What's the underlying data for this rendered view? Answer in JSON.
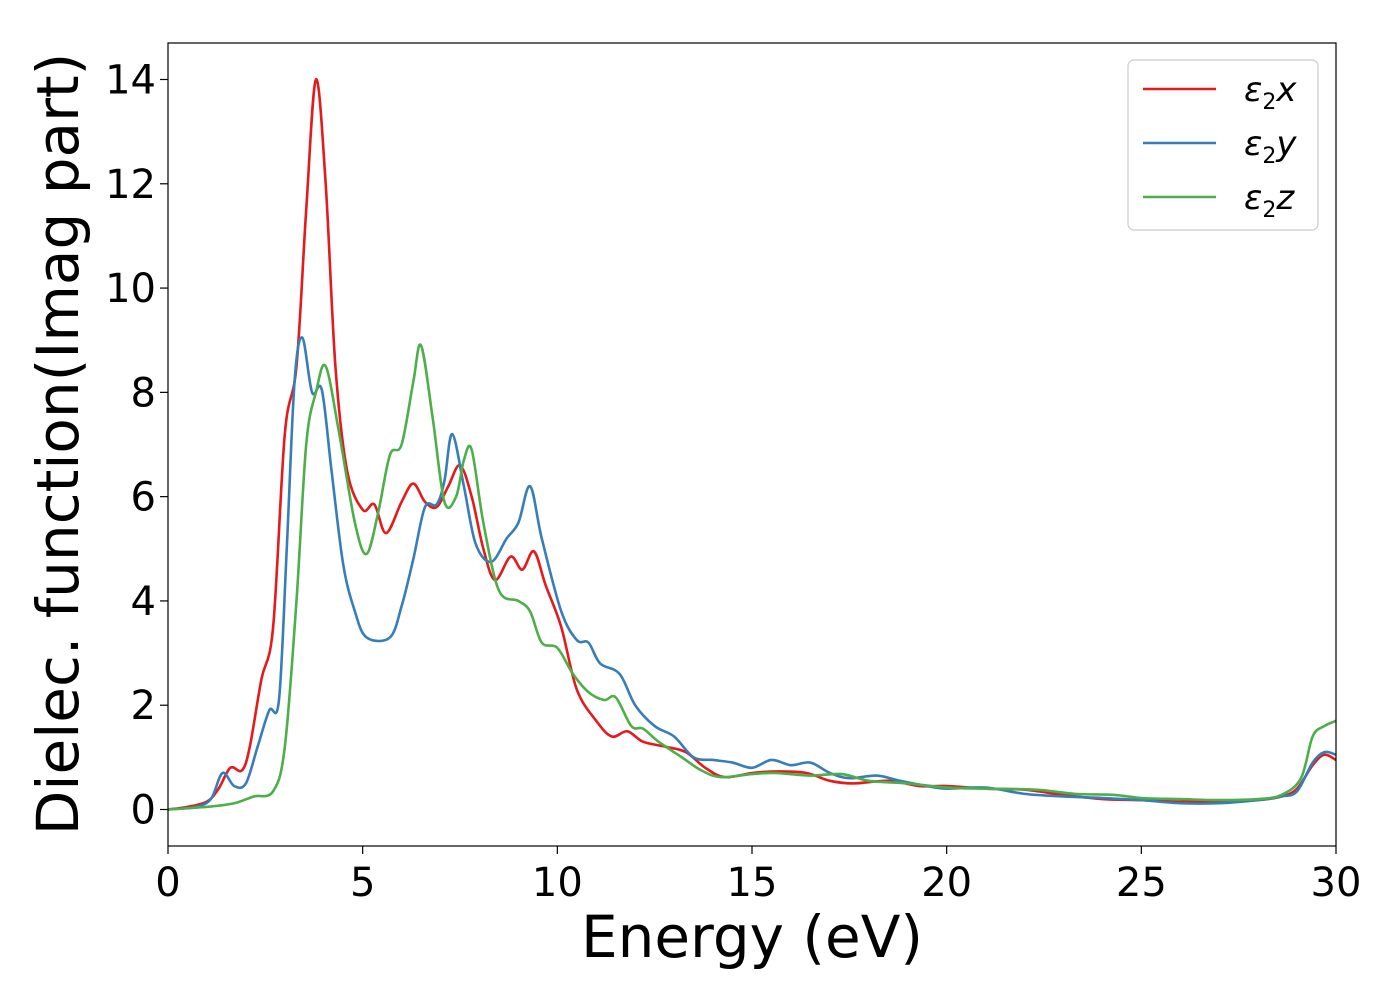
{
  "chart_data": {
    "type": "line",
    "title": "",
    "xlabel": "Energy (eV)",
    "ylabel": "Dielec. function(Imag part)",
    "xlim": [
      0,
      30
    ],
    "ylim": [
      -0.7,
      14.7
    ],
    "xticks": [
      0,
      5,
      10,
      15,
      20,
      25,
      30
    ],
    "yticks": [
      0,
      2,
      4,
      6,
      8,
      10,
      12,
      14
    ],
    "grid": false,
    "legend_position": "top-right",
    "legend": [
      {
        "base": "ε",
        "sub": "2",
        "var": "x"
      },
      {
        "base": "ε",
        "sub": "2",
        "var": "y"
      },
      {
        "base": "ε",
        "sub": "2",
        "var": "z"
      }
    ],
    "series": [
      {
        "name": "ε2x",
        "color": "#e41a1c",
        "points": [
          [
            0,
            0
          ],
          [
            0.5,
            0.05
          ],
          [
            1.0,
            0.15
          ],
          [
            1.3,
            0.4
          ],
          [
            1.6,
            0.8
          ],
          [
            1.9,
            0.75
          ],
          [
            2.1,
            1.2
          ],
          [
            2.4,
            2.5
          ],
          [
            2.7,
            3.5
          ],
          [
            3.0,
            7.2
          ],
          [
            3.3,
            8.5
          ],
          [
            3.55,
            11.5
          ],
          [
            3.8,
            14.0
          ],
          [
            4.05,
            12.0
          ],
          [
            4.3,
            8.5
          ],
          [
            4.6,
            6.5
          ],
          [
            5.0,
            5.75
          ],
          [
            5.3,
            5.85
          ],
          [
            5.6,
            5.3
          ],
          [
            6.0,
            5.9
          ],
          [
            6.3,
            6.25
          ],
          [
            6.6,
            5.9
          ],
          [
            6.9,
            5.8
          ],
          [
            7.2,
            6.2
          ],
          [
            7.5,
            6.6
          ],
          [
            7.8,
            6.0
          ],
          [
            8.1,
            5.0
          ],
          [
            8.4,
            4.4
          ],
          [
            8.8,
            4.85
          ],
          [
            9.1,
            4.6
          ],
          [
            9.4,
            4.95
          ],
          [
            9.7,
            4.3
          ],
          [
            10.1,
            3.5
          ],
          [
            10.5,
            2.3
          ],
          [
            11.0,
            1.7
          ],
          [
            11.4,
            1.4
          ],
          [
            11.8,
            1.5
          ],
          [
            12.2,
            1.3
          ],
          [
            12.8,
            1.2
          ],
          [
            13.3,
            1.1
          ],
          [
            13.8,
            0.8
          ],
          [
            14.3,
            0.62
          ],
          [
            15.0,
            0.7
          ],
          [
            15.7,
            0.73
          ],
          [
            16.4,
            0.7
          ],
          [
            17.0,
            0.55
          ],
          [
            17.6,
            0.5
          ],
          [
            18.5,
            0.55
          ],
          [
            19.3,
            0.45
          ],
          [
            20.0,
            0.45
          ],
          [
            21.0,
            0.4
          ],
          [
            22.0,
            0.38
          ],
          [
            23.0,
            0.28
          ],
          [
            24.0,
            0.2
          ],
          [
            25.0,
            0.18
          ],
          [
            26.0,
            0.15
          ],
          [
            27.0,
            0.15
          ],
          [
            28.0,
            0.18
          ],
          [
            28.6,
            0.25
          ],
          [
            29.0,
            0.4
          ],
          [
            29.4,
            0.85
          ],
          [
            29.7,
            1.05
          ],
          [
            30.0,
            0.95
          ]
        ]
      },
      {
        "name": "ε2y",
        "color": "#377eb8",
        "points": [
          [
            0,
            0
          ],
          [
            0.7,
            0.05
          ],
          [
            1.1,
            0.2
          ],
          [
            1.4,
            0.7
          ],
          [
            1.7,
            0.45
          ],
          [
            2.0,
            0.5
          ],
          [
            2.3,
            1.2
          ],
          [
            2.6,
            1.9
          ],
          [
            2.85,
            2.1
          ],
          [
            3.05,
            5.0
          ],
          [
            3.25,
            8.2
          ],
          [
            3.45,
            9.05
          ],
          [
            3.7,
            8.0
          ],
          [
            3.95,
            8.05
          ],
          [
            4.2,
            6.5
          ],
          [
            4.5,
            4.7
          ],
          [
            4.8,
            3.8
          ],
          [
            5.1,
            3.3
          ],
          [
            5.7,
            3.3
          ],
          [
            6.0,
            3.9
          ],
          [
            6.3,
            4.8
          ],
          [
            6.6,
            5.8
          ],
          [
            6.9,
            5.85
          ],
          [
            7.1,
            6.3
          ],
          [
            7.3,
            7.2
          ],
          [
            7.6,
            6.2
          ],
          [
            7.9,
            5.1
          ],
          [
            8.3,
            4.75
          ],
          [
            8.7,
            5.2
          ],
          [
            9.0,
            5.5
          ],
          [
            9.3,
            6.2
          ],
          [
            9.6,
            5.2
          ],
          [
            10.1,
            3.8
          ],
          [
            10.5,
            3.25
          ],
          [
            10.8,
            3.2
          ],
          [
            11.1,
            2.8
          ],
          [
            11.6,
            2.6
          ],
          [
            12.0,
            2.0
          ],
          [
            12.5,
            1.6
          ],
          [
            13.0,
            1.4
          ],
          [
            13.5,
            1.0
          ],
          [
            14.0,
            0.95
          ],
          [
            14.5,
            0.9
          ],
          [
            15.0,
            0.8
          ],
          [
            15.5,
            0.95
          ],
          [
            16.0,
            0.85
          ],
          [
            16.5,
            0.9
          ],
          [
            17.0,
            0.7
          ],
          [
            17.5,
            0.6
          ],
          [
            18.2,
            0.65
          ],
          [
            18.8,
            0.55
          ],
          [
            19.5,
            0.45
          ],
          [
            20.0,
            0.4
          ],
          [
            21.0,
            0.42
          ],
          [
            22.0,
            0.3
          ],
          [
            23.0,
            0.25
          ],
          [
            24.0,
            0.22
          ],
          [
            25.0,
            0.18
          ],
          [
            26.0,
            0.12
          ],
          [
            27.0,
            0.12
          ],
          [
            28.0,
            0.18
          ],
          [
            28.6,
            0.25
          ],
          [
            29.0,
            0.35
          ],
          [
            29.4,
            0.9
          ],
          [
            29.7,
            1.1
          ],
          [
            30.0,
            1.05
          ]
        ]
      },
      {
        "name": "ε2z",
        "color": "#4daf4a",
        "points": [
          [
            0,
            0
          ],
          [
            1.0,
            0.05
          ],
          [
            1.7,
            0.12
          ],
          [
            2.2,
            0.25
          ],
          [
            2.7,
            0.35
          ],
          [
            3.0,
            1.2
          ],
          [
            3.3,
            4.0
          ],
          [
            3.55,
            7.0
          ],
          [
            3.8,
            8.0
          ],
          [
            4.05,
            8.5
          ],
          [
            4.4,
            7.2
          ],
          [
            4.8,
            5.5
          ],
          [
            5.1,
            4.9
          ],
          [
            5.4,
            5.7
          ],
          [
            5.7,
            6.8
          ],
          [
            6.0,
            7.0
          ],
          [
            6.3,
            8.2
          ],
          [
            6.5,
            8.9
          ],
          [
            6.8,
            7.5
          ],
          [
            7.1,
            5.9
          ],
          [
            7.4,
            6.0
          ],
          [
            7.6,
            6.7
          ],
          [
            7.8,
            6.9
          ],
          [
            8.1,
            5.5
          ],
          [
            8.5,
            4.2
          ],
          [
            9.0,
            4.0
          ],
          [
            9.3,
            3.8
          ],
          [
            9.6,
            3.2
          ],
          [
            10.0,
            3.1
          ],
          [
            10.4,
            2.6
          ],
          [
            10.8,
            2.25
          ],
          [
            11.2,
            2.1
          ],
          [
            11.5,
            2.15
          ],
          [
            11.9,
            1.6
          ],
          [
            12.2,
            1.55
          ],
          [
            12.6,
            1.3
          ],
          [
            13.2,
            1.0
          ],
          [
            13.7,
            0.75
          ],
          [
            14.2,
            0.62
          ],
          [
            15.0,
            0.68
          ],
          [
            15.6,
            0.7
          ],
          [
            16.5,
            0.65
          ],
          [
            17.3,
            0.68
          ],
          [
            18.0,
            0.55
          ],
          [
            19.0,
            0.5
          ],
          [
            20.0,
            0.42
          ],
          [
            21.0,
            0.4
          ],
          [
            22.3,
            0.38
          ],
          [
            23.3,
            0.3
          ],
          [
            24.3,
            0.28
          ],
          [
            25.0,
            0.22
          ],
          [
            26.0,
            0.2
          ],
          [
            27.0,
            0.18
          ],
          [
            28.0,
            0.2
          ],
          [
            28.6,
            0.28
          ],
          [
            29.1,
            0.6
          ],
          [
            29.4,
            1.4
          ],
          [
            29.7,
            1.6
          ],
          [
            30.0,
            1.7
          ]
        ]
      }
    ]
  }
}
